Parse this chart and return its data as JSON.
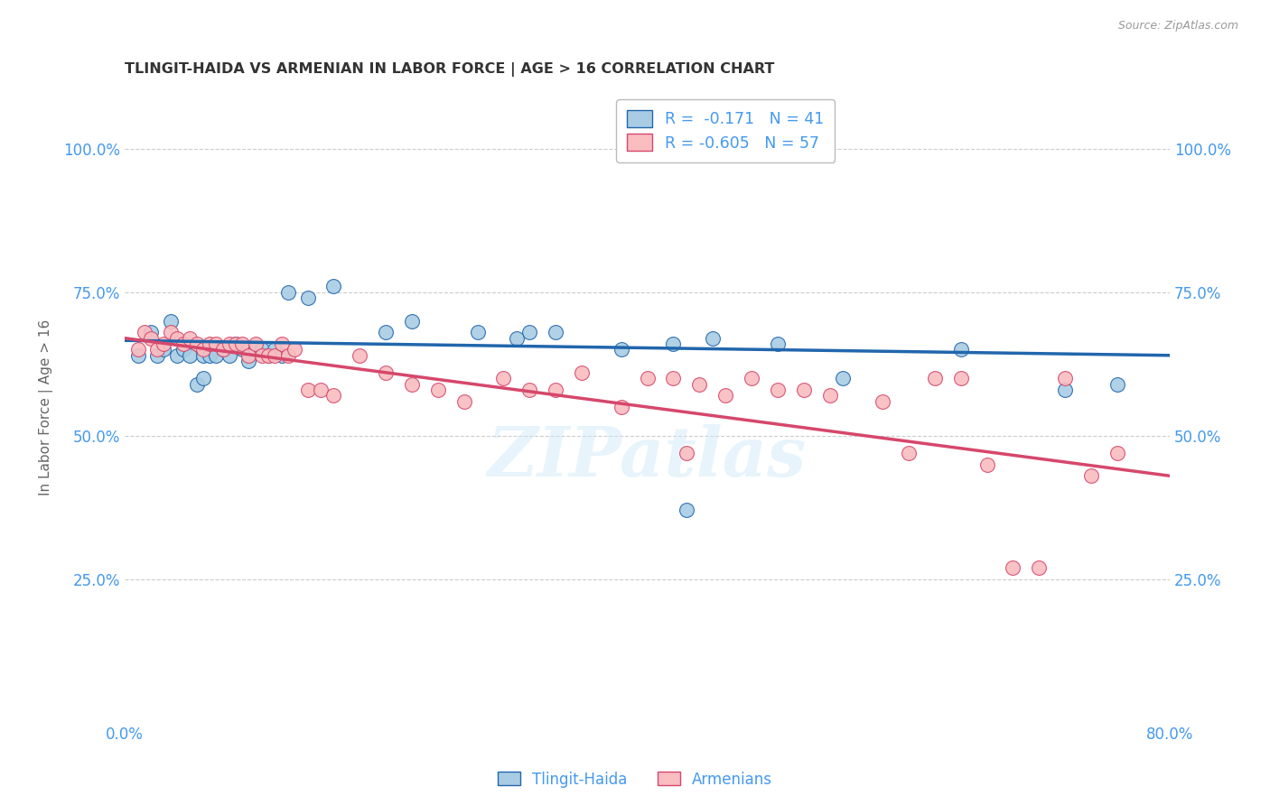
{
  "title": "TLINGIT-HAIDA VS ARMENIAN IN LABOR FORCE | AGE > 16 CORRELATION CHART",
  "source_text": "Source: ZipAtlas.com",
  "ylabel": "In Labor Force | Age > 16",
  "xlim": [
    0.0,
    0.8
  ],
  "ylim": [
    0.0,
    1.1
  ],
  "yticks": [
    0.25,
    0.5,
    0.75,
    1.0
  ],
  "ytick_labels": [
    "25.0%",
    "50.0%",
    "75.0%",
    "100.0%"
  ],
  "xticks": [
    0.0,
    0.1,
    0.2,
    0.3,
    0.4,
    0.5,
    0.6,
    0.7,
    0.8
  ],
  "xtick_labels": [
    "0.0%",
    "",
    "",
    "",
    "",
    "",
    "",
    "",
    "80.0%"
  ],
  "legend_labels": [
    "Tlingit-Haida",
    "Armenians"
  ],
  "R_tlingit": -0.171,
  "N_tlingit": 41,
  "R_armenian": -0.605,
  "N_armenian": 57,
  "color_tlingit": "#a8cce4",
  "color_armenian": "#f9bdc0",
  "color_tlingit_line": "#2166ac",
  "color_armenian_line": "#d6476b",
  "color_axis_text": "#4499ee",
  "watermark": "ZIPatlas",
  "tlingit_x": [
    0.01,
    0.02,
    0.025,
    0.03,
    0.035,
    0.04,
    0.045,
    0.05,
    0.055,
    0.06,
    0.06,
    0.065,
    0.07,
    0.075,
    0.08,
    0.085,
    0.09,
    0.095,
    0.1,
    0.105,
    0.11,
    0.115,
    0.12,
    0.125,
    0.14,
    0.16,
    0.2,
    0.22,
    0.27,
    0.31,
    0.33,
    0.38,
    0.42,
    0.43,
    0.45,
    0.5,
    0.55,
    0.64,
    0.72,
    0.76,
    0.3
  ],
  "tlingit_y": [
    0.64,
    0.68,
    0.64,
    0.65,
    0.7,
    0.64,
    0.65,
    0.64,
    0.59,
    0.64,
    0.6,
    0.64,
    0.64,
    0.65,
    0.64,
    0.66,
    0.65,
    0.63,
    0.65,
    0.65,
    0.64,
    0.65,
    0.64,
    0.75,
    0.74,
    0.76,
    0.68,
    0.7,
    0.68,
    0.68,
    0.68,
    0.65,
    0.66,
    0.37,
    0.67,
    0.66,
    0.6,
    0.65,
    0.58,
    0.59,
    0.67
  ],
  "armenian_x": [
    0.01,
    0.015,
    0.02,
    0.025,
    0.03,
    0.035,
    0.04,
    0.045,
    0.05,
    0.055,
    0.06,
    0.065,
    0.07,
    0.075,
    0.08,
    0.085,
    0.09,
    0.095,
    0.1,
    0.105,
    0.11,
    0.115,
    0.12,
    0.125,
    0.13,
    0.14,
    0.15,
    0.16,
    0.18,
    0.2,
    0.22,
    0.24,
    0.26,
    0.29,
    0.31,
    0.33,
    0.35,
    0.38,
    0.4,
    0.42,
    0.44,
    0.46,
    0.48,
    0.5,
    0.52,
    0.54,
    0.58,
    0.6,
    0.62,
    0.64,
    0.66,
    0.68,
    0.7,
    0.72,
    0.74,
    0.76,
    0.43
  ],
  "armenian_y": [
    0.65,
    0.68,
    0.67,
    0.65,
    0.66,
    0.68,
    0.67,
    0.66,
    0.67,
    0.66,
    0.65,
    0.66,
    0.66,
    0.65,
    0.66,
    0.66,
    0.66,
    0.64,
    0.66,
    0.64,
    0.64,
    0.64,
    0.66,
    0.64,
    0.65,
    0.58,
    0.58,
    0.57,
    0.64,
    0.61,
    0.59,
    0.58,
    0.56,
    0.6,
    0.58,
    0.58,
    0.61,
    0.55,
    0.6,
    0.6,
    0.59,
    0.57,
    0.6,
    0.58,
    0.58,
    0.57,
    0.56,
    0.47,
    0.6,
    0.6,
    0.45,
    0.27,
    0.27,
    0.6,
    0.43,
    0.47,
    0.47
  ],
  "tlingit_line_x0": 0.0,
  "tlingit_line_y0": 0.666,
  "tlingit_line_x1": 0.8,
  "tlingit_line_y1": 0.64,
  "armenian_line_x0": 0.0,
  "armenian_line_y0": 0.67,
  "armenian_line_x1": 0.8,
  "armenian_line_y1": 0.43
}
